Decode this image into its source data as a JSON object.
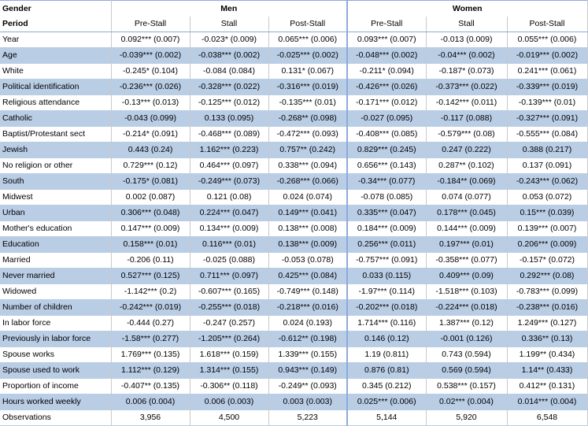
{
  "header": {
    "col_label": "Gender",
    "period_label": "Period",
    "groups": [
      "Men",
      "Women"
    ],
    "periods": [
      "Pre-Stall",
      "Stall",
      "Post-Stall",
      "Pre-Stall",
      "Stall",
      "Post-Stall"
    ]
  },
  "rows": [
    {
      "label": "Year",
      "values": [
        "0.092*** (0.007)",
        "-0.023* (0.009)",
        "0.065*** (0.006)",
        "0.093*** (0.007)",
        "-0.013 (0.009)",
        "0.055*** (0.006)"
      ]
    },
    {
      "label": "Age",
      "values": [
        "-0.039*** (0.002)",
        "-0.038*** (0.002)",
        "-0.025*** (0.002)",
        "-0.048*** (0.002)",
        "-0.04*** (0.002)",
        "-0.019*** (0.002)"
      ]
    },
    {
      "label": "White",
      "values": [
        "-0.245* (0.104)",
        "-0.084 (0.084)",
        "0.131* (0.067)",
        "-0.211* (0.094)",
        "-0.187* (0.073)",
        "0.241*** (0.061)"
      ]
    },
    {
      "label": "Political identification",
      "values": [
        "-0.236*** (0.026)",
        "-0.328*** (0.022)",
        "-0.316*** (0.019)",
        "-0.426*** (0.026)",
        "-0.373*** (0.022)",
        "-0.339*** (0.019)"
      ]
    },
    {
      "label": "Religious attendance",
      "values": [
        "-0.13*** (0.013)",
        "-0.125*** (0.012)",
        "-0.135*** (0.01)",
        "-0.171*** (0.012)",
        "-0.142*** (0.011)",
        "-0.139*** (0.01)"
      ]
    },
    {
      "label": "Catholic",
      "values": [
        "-0.043 (0.099)",
        "0.133 (0.095)",
        "-0.268** (0.098)",
        "-0.027 (0.095)",
        "-0.117 (0.088)",
        "-0.327*** (0.091)"
      ]
    },
    {
      "label": "Baptist/Protestant sect",
      "values": [
        "-0.214* (0.091)",
        "-0.468*** (0.089)",
        "-0.472*** (0.093)",
        "-0.408*** (0.085)",
        "-0.579*** (0.08)",
        "-0.555*** (0.084)"
      ]
    },
    {
      "label": "Jewish",
      "values": [
        "0.443 (0.24)",
        "1.162*** (0.223)",
        "0.757** (0.242)",
        "0.829*** (0.245)",
        "0.247 (0.222)",
        "0.388 (0.217)"
      ]
    },
    {
      "label": "No religion or other",
      "values": [
        "0.729*** (0.12)",
        "0.464*** (0.097)",
        "0.338*** (0.094)",
        "0.656*** (0.143)",
        "0.287** (0.102)",
        "0.137 (0.091)"
      ]
    },
    {
      "label": "South",
      "values": [
        "-0.175* (0.081)",
        "-0.249*** (0.073)",
        "-0.268*** (0.066)",
        "-0.34*** (0.077)",
        "-0.184** (0.069)",
        "-0.243*** (0.062)"
      ]
    },
    {
      "label": "Midwest",
      "values": [
        "0.002 (0.087)",
        "0.121 (0.08)",
        "0.024 (0.074)",
        "-0.078 (0.085)",
        "0.074 (0.077)",
        "0.053 (0.072)"
      ]
    },
    {
      "label": "Urban",
      "values": [
        "0.306*** (0.048)",
        "0.224*** (0.047)",
        "0.149*** (0.041)",
        "0.335*** (0.047)",
        "0.178*** (0.045)",
        "0.15*** (0.039)"
      ]
    },
    {
      "label": "Mother's education",
      "values": [
        "0.147*** (0.009)",
        "0.134*** (0.009)",
        "0.138*** (0.008)",
        "0.184*** (0.009)",
        "0.144*** (0.009)",
        "0.139*** (0.007)"
      ]
    },
    {
      "label": "Education",
      "values": [
        "0.158*** (0.01)",
        "0.116*** (0.01)",
        "0.138*** (0.009)",
        "0.256*** (0.011)",
        "0.197*** (0.01)",
        "0.206*** (0.009)"
      ]
    },
    {
      "label": "Married",
      "values": [
        "-0.206 (0.11)",
        "-0.025 (0.088)",
        "-0.053 (0.078)",
        "-0.757*** (0.091)",
        "-0.358*** (0.077)",
        "-0.157* (0.072)"
      ]
    },
    {
      "label": "Never married",
      "values": [
        "0.527*** (0.125)",
        "0.711*** (0.097)",
        "0.425*** (0.084)",
        "0.033 (0.115)",
        "0.409*** (0.09)",
        "0.292*** (0.08)"
      ]
    },
    {
      "label": "Widowed",
      "values": [
        "-1.142*** (0.2)",
        "-0.607*** (0.165)",
        "-0.749*** (0.148)",
        "-1.97*** (0.114)",
        "-1.518*** (0.103)",
        "-0.783*** (0.099)"
      ]
    },
    {
      "label": "Number of children",
      "values": [
        "-0.242*** (0.019)",
        "-0.255*** (0.018)",
        "-0.218*** (0.016)",
        "-0.202*** (0.018)",
        "-0.224*** (0.018)",
        "-0.238*** (0.016)"
      ]
    },
    {
      "label": "In labor force",
      "values": [
        "-0.444 (0.27)",
        "-0.247 (0.257)",
        "0.024 (0.193)",
        "1.714*** (0.116)",
        "1.387*** (0.12)",
        "1.249*** (0.127)"
      ]
    },
    {
      "label": "Previously in labor force",
      "values": [
        "-1.58*** (0.277)",
        "-1.205*** (0.264)",
        "-0.612** (0.198)",
        "0.146 (0.12)",
        "-0.001 (0.126)",
        "0.336** (0.13)"
      ]
    },
    {
      "label": "Spouse works",
      "values": [
        "1.769*** (0.135)",
        "1.618*** (0.159)",
        "1.339*** (0.155)",
        "1.19 (0.811)",
        "0.743 (0.594)",
        "1.199** (0.434)"
      ]
    },
    {
      "label": "Spouse used to work",
      "values": [
        "1.112*** (0.129)",
        "1.314*** (0.155)",
        "0.943*** (0.149)",
        "0.876 (0.81)",
        "0.569 (0.594)",
        "1.14** (0.433)"
      ]
    },
    {
      "label": "Proportion of income",
      "values": [
        "-0.407** (0.135)",
        "-0.306** (0.118)",
        "-0.249** (0.093)",
        "0.345 (0.212)",
        "0.538*** (0.157)",
        "0.412** (0.131)"
      ]
    },
    {
      "label": "Hours worked weekly",
      "values": [
        "0.006 (0.004)",
        "0.006 (0.003)",
        "0.003 (0.003)",
        "0.025*** (0.006)",
        "0.02*** (0.004)",
        "0.014*** (0.004)"
      ]
    },
    {
      "label": "Observations",
      "values": [
        "3,956",
        "4,500",
        "5,223",
        "5,144",
        "5,920",
        "6,548"
      ]
    }
  ]
}
